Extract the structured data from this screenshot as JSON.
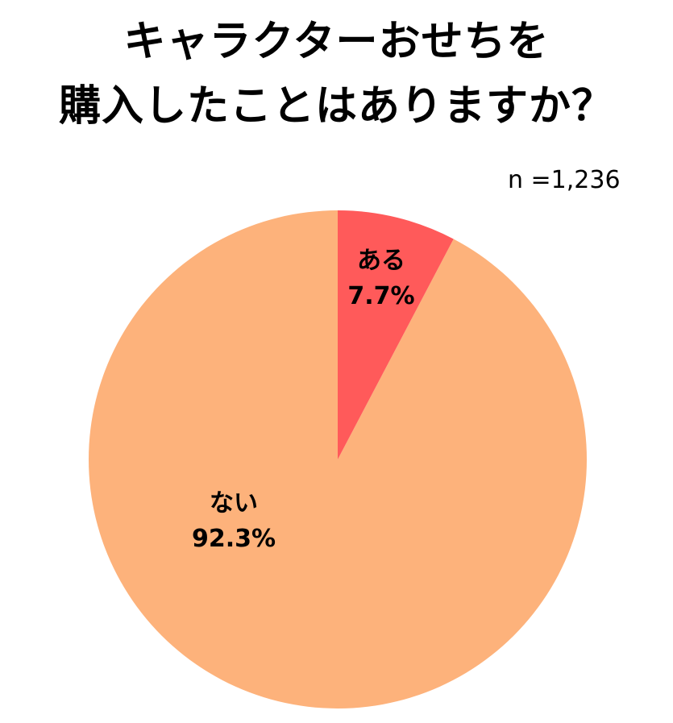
{
  "title": {
    "line1": "キャラクターおせちを",
    "line2": "購入したことはありますか？"
  },
  "sample_size": "n =1,236",
  "colors": {
    "yes": "#FF5A5A",
    "no": "#FDB27B",
    "background": "#FFFFFF"
  },
  "slices": [
    {
      "label": "ある",
      "value_label": "7.7%"
    },
    {
      "label": "ない",
      "value_label": "92.3%"
    }
  ],
  "chart_data": {
    "type": "pie",
    "title": "キャラクターおせちを購入したことはありますか？",
    "subtitle": "n =1,236",
    "categories": [
      "ある",
      "ない"
    ],
    "values": [
      7.7,
      92.3
    ],
    "unit": "%",
    "start_angle": "12 o'clock, clockwise",
    "colors": [
      "#FF5A5A",
      "#FDB27B"
    ],
    "legend": "none (labels inside slices)"
  }
}
